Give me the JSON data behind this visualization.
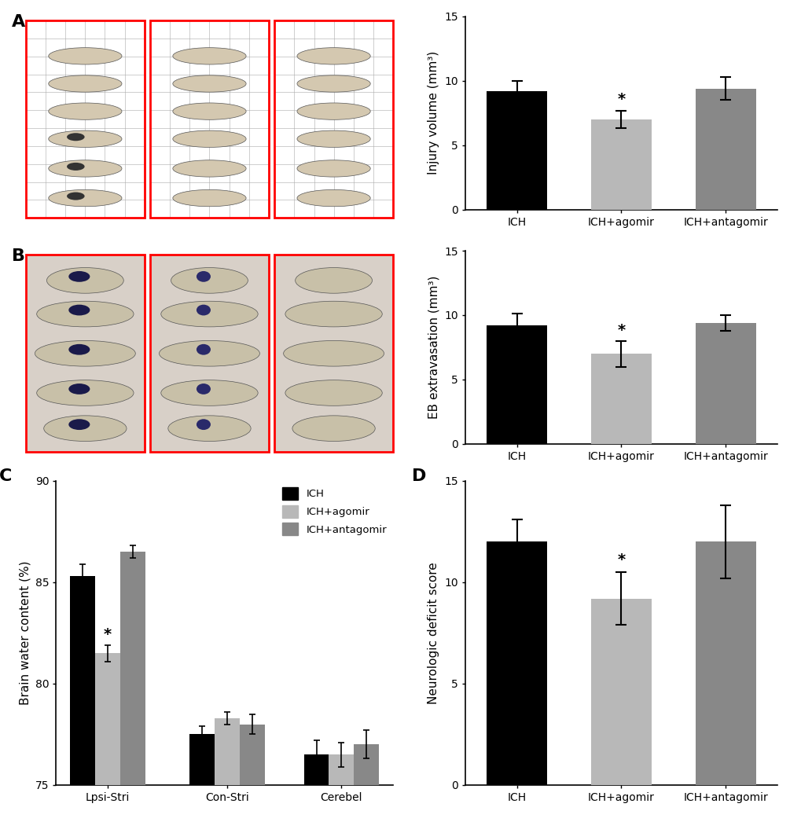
{
  "panel_A_bar": {
    "categories": [
      "ICH",
      "ICH+agomir",
      "ICH+antagomir"
    ],
    "values": [
      9.2,
      7.0,
      9.4
    ],
    "errors": [
      0.8,
      0.7,
      0.9
    ],
    "colors": [
      "#000000",
      "#b8b8b8",
      "#888888"
    ],
    "ylabel": "Injury volume (mm³)",
    "ylim": [
      0,
      15
    ],
    "yticks": [
      0,
      5,
      10,
      15
    ],
    "sig_bar": 1
  },
  "panel_B_bar": {
    "categories": [
      "ICH",
      "ICH+agomir",
      "ICH+antagomir"
    ],
    "values": [
      9.2,
      7.0,
      9.4
    ],
    "errors": [
      0.9,
      1.0,
      0.6
    ],
    "colors": [
      "#000000",
      "#b8b8b8",
      "#888888"
    ],
    "ylabel": "EB extravasation (mm³)",
    "ylim": [
      0,
      15
    ],
    "yticks": [
      0,
      5,
      10,
      15
    ],
    "sig_bar": 1
  },
  "panel_C_bar": {
    "groups": [
      "Lpsi-Stri",
      "Con-Stri",
      "Cerebel"
    ],
    "series": [
      "ICH",
      "ICH+agomir",
      "ICH+antagomir"
    ],
    "values": [
      [
        85.3,
        81.5,
        86.5
      ],
      [
        77.5,
        78.3,
        78.0
      ],
      [
        76.5,
        76.5,
        77.0
      ]
    ],
    "errors": [
      [
        0.6,
        0.4,
        0.3
      ],
      [
        0.4,
        0.3,
        0.5
      ],
      [
        0.7,
        0.6,
        0.7
      ]
    ],
    "colors": [
      "#000000",
      "#b8b8b8",
      "#888888"
    ],
    "ylabel": "Brain water content (%)",
    "ylim": [
      75,
      90
    ],
    "yticks": [
      75,
      80,
      85,
      90
    ],
    "sig_group": 0,
    "sig_bar": 1
  },
  "panel_D_bar": {
    "categories": [
      "ICH",
      "ICH+agomir",
      "ICH+antagomir"
    ],
    "values": [
      12.0,
      9.2,
      12.0
    ],
    "errors": [
      1.1,
      1.3,
      1.8
    ],
    "colors": [
      "#000000",
      "#b8b8b8",
      "#888888"
    ],
    "ylabel": "Neurologic deficit score",
    "ylim": [
      0,
      15
    ],
    "yticks": [
      0,
      5,
      10,
      15
    ],
    "sig_bar": 1
  },
  "legend": {
    "labels": [
      "ICH",
      "ICH+agomir",
      "ICH+antagomir"
    ],
    "colors": [
      "#000000",
      "#b8b8b8",
      "#888888"
    ]
  },
  "panel_labels": [
    "A",
    "B",
    "C",
    "D"
  ],
  "background_color": "#ffffff",
  "fontsize_axis_label": 11,
  "fontsize_tick": 10,
  "fontsize_panel_label": 16
}
